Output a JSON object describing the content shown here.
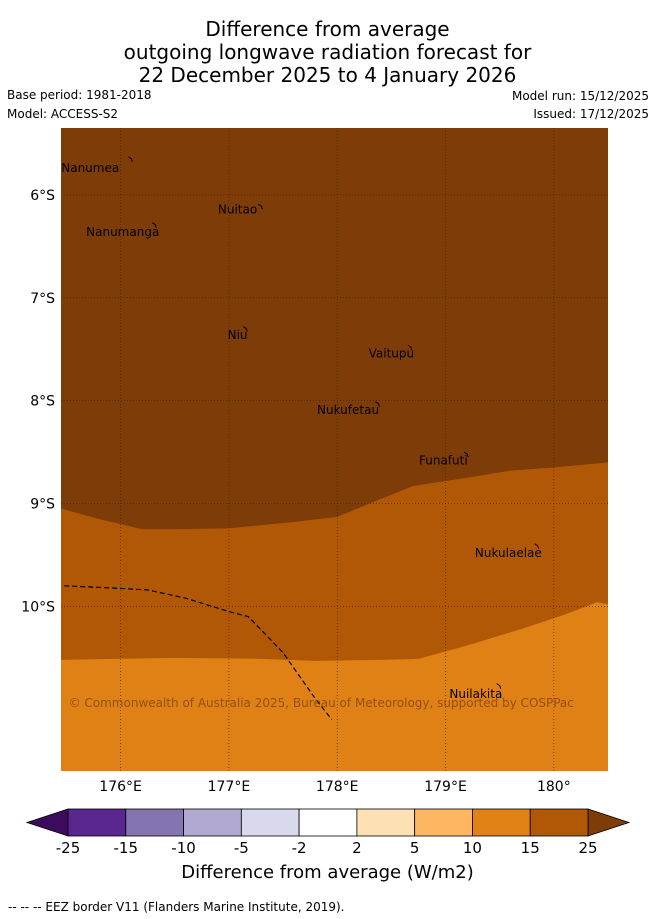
{
  "title": {
    "line1": "Difference from average",
    "line2": "outgoing longwave radiation forecast for",
    "line3": "22 December 2025 to 4 January 2026"
  },
  "meta": {
    "base_period": "Base period: 1981-2018",
    "model": "Model: ACCESS-S2",
    "model_run": "Model run: 15/12/2025",
    "issued": "Issued: 17/12/2025"
  },
  "map": {
    "lon_range": [
      175.45,
      180.5
    ],
    "lat_range": [
      -11.6,
      -5.35
    ],
    "lon_ticks": [
      176,
      177,
      178,
      179,
      180
    ],
    "lat_ticks": [
      -6,
      -7,
      -8,
      -9,
      -10
    ],
    "lon_tick_labels": [
      "176°E",
      "177°E",
      "178°E",
      "179°E",
      "180°"
    ],
    "lat_tick_labels": [
      "6°S",
      "7°S",
      "8°S",
      "9°S",
      "10°S"
    ],
    "copyright": "© Commonwealth of Australia 2025, Bureau of Meteorology, supported by COSPPac",
    "colors": {
      "band_15_25": "#7d3c08",
      "band_10_15": "#b15807",
      "band_5_10": "#e08115",
      "grid": "#3a2000",
      "coast": "#000000",
      "eez": "#000000"
    },
    "contours": {
      "boundary_25_15": [
        [
          175.45,
          -9.05
        ],
        [
          175.8,
          -9.15
        ],
        [
          176.2,
          -9.25
        ],
        [
          176.5,
          -9.25
        ],
        [
          177.0,
          -9.24
        ],
        [
          177.6,
          -9.18
        ],
        [
          178.0,
          -9.13
        ],
        [
          178.3,
          -9.0
        ],
        [
          178.7,
          -8.83
        ],
        [
          179.2,
          -8.75
        ],
        [
          179.6,
          -8.68
        ],
        [
          180.0,
          -8.65
        ],
        [
          180.5,
          -8.6
        ]
      ],
      "boundary_15_10": [
        [
          175.45,
          -10.52
        ],
        [
          176.5,
          -10.5
        ],
        [
          177.3,
          -10.51
        ],
        [
          177.8,
          -10.53
        ],
        [
          178.4,
          -10.52
        ],
        [
          178.75,
          -10.51
        ],
        [
          179.2,
          -10.38
        ],
        [
          179.7,
          -10.22
        ],
        [
          180.1,
          -10.08
        ],
        [
          180.4,
          -9.96
        ],
        [
          180.5,
          -9.98
        ]
      ]
    },
    "eez_line": [
      [
        175.48,
        -9.8
      ],
      [
        175.9,
        -9.82
      ],
      [
        176.25,
        -9.84
      ],
      [
        176.6,
        -9.92
      ],
      [
        177.0,
        -10.05
      ],
      [
        177.18,
        -10.1
      ],
      [
        177.5,
        -10.45
      ],
      [
        177.8,
        -10.9
      ],
      [
        177.95,
        -11.1
      ]
    ],
    "islands": [
      {
        "name": "Nanumea",
        "lon": 176.1,
        "lat": -5.65,
        "label_lon": 175.72,
        "label_lat": -5.78
      },
      {
        "name": "Nuitao",
        "lon": 177.3,
        "lat": -6.11,
        "label_lon": 177.08,
        "label_lat": -6.18
      },
      {
        "name": "Nanumanga",
        "lon": 176.32,
        "lat": -6.29,
        "label_lon": 176.02,
        "label_lat": -6.4
      },
      {
        "name": "Niu",
        "lon": 177.16,
        "lat": -7.3,
        "label_lon": 177.08,
        "label_lat": -7.4
      },
      {
        "name": "Vaitupu",
        "lon": 178.68,
        "lat": -7.48,
        "label_lon": 178.5,
        "label_lat": -7.58
      },
      {
        "name": "Nukufetau",
        "lon": 178.38,
        "lat": -8.03,
        "label_lon": 178.1,
        "label_lat": -8.13
      },
      {
        "name": "Funafuti",
        "lon": 179.2,
        "lat": -8.52,
        "label_lon": 178.98,
        "label_lat": -8.62
      },
      {
        "name": "Nukulaelae",
        "lon": 179.85,
        "lat": -9.41,
        "label_lon": 179.58,
        "label_lat": -9.52
      },
      {
        "name": "Nuilakita",
        "lon": 179.5,
        "lat": -10.77,
        "label_lon": 179.28,
        "label_lat": -10.89
      }
    ]
  },
  "colorbar": {
    "title": "Difference from average (W/m2)",
    "tick_labels": [
      "-25",
      "-15",
      "-10",
      "-5",
      "-2",
      "2",
      "5",
      "10",
      "15",
      "25"
    ],
    "colors": [
      "#5a2790",
      "#8474b0",
      "#b1a9d2",
      "#d9d9ec",
      "#ffffff",
      "#fde0b4",
      "#fdb763",
      "#e08115",
      "#b15807"
    ],
    "under_color": "#3b0b5e",
    "over_color": "#7d3c08"
  },
  "footnote": "-- -- -- EEZ border V11 (Flanders Marine Institute, 2019)."
}
